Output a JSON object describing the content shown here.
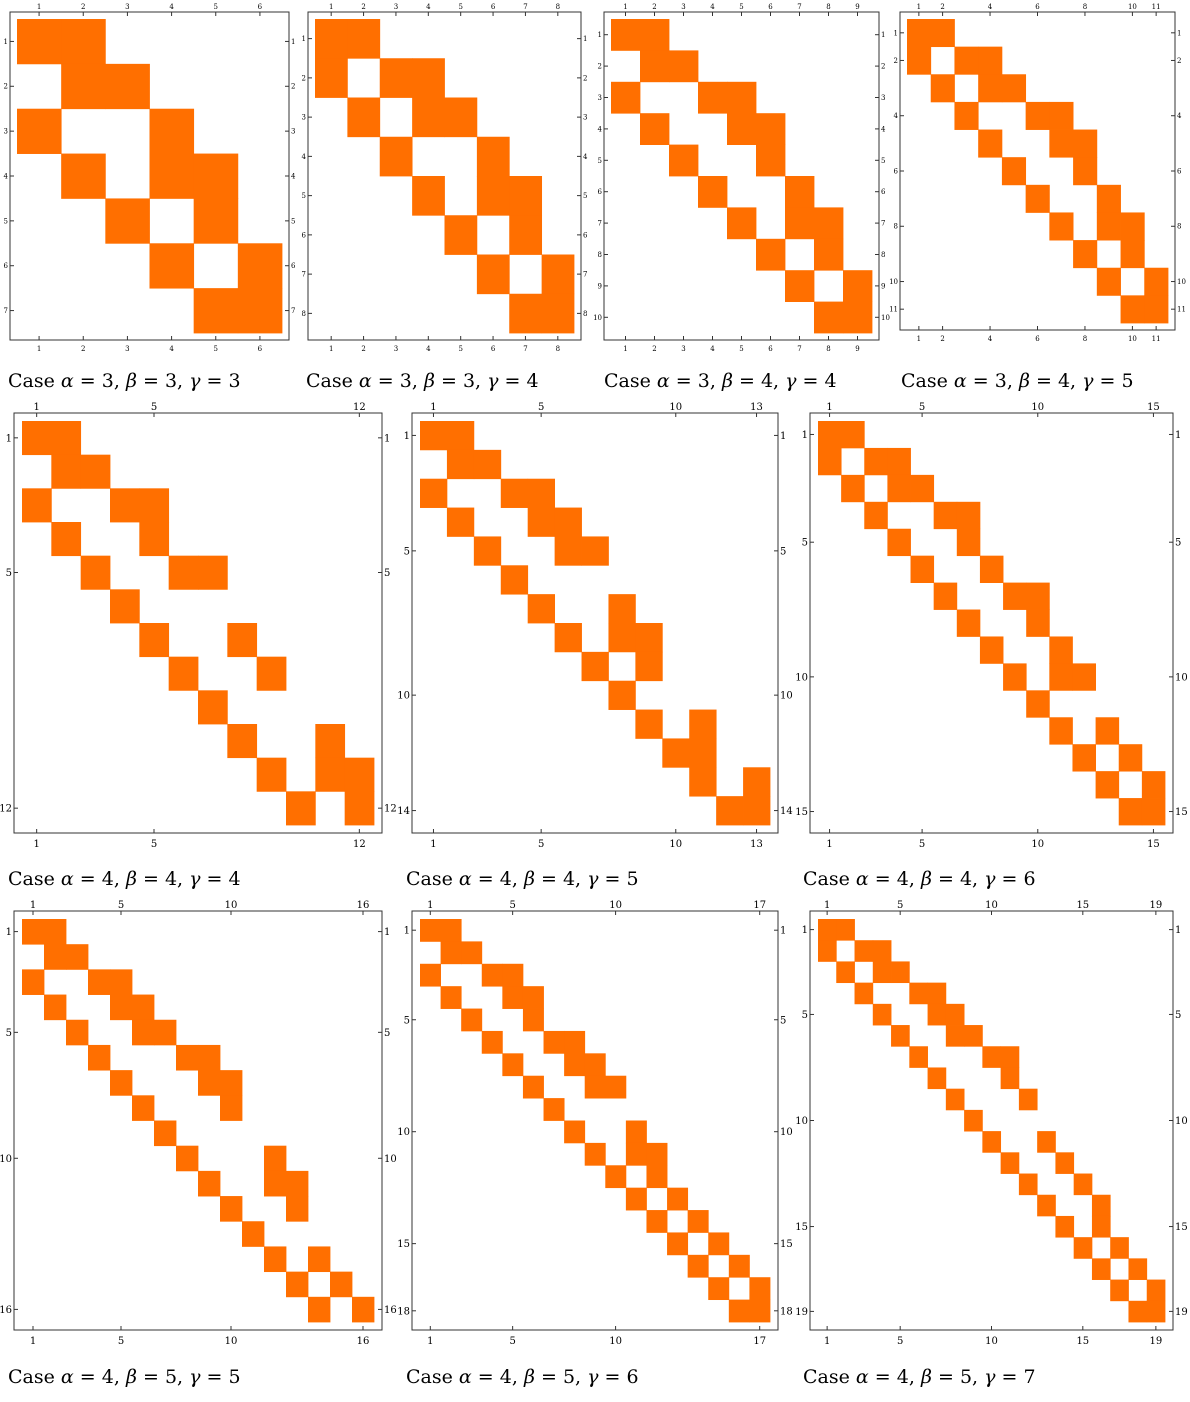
{
  "palette": {
    "cell": "#ff6f00",
    "frame": "#333333",
    "background": "#ffffff",
    "text": "#000000"
  },
  "chart_data": [
    {
      "type": "heatmap",
      "title": "Case α = 3, β = 3, γ = 3",
      "caption": {
        "prefix": "Case",
        "alpha": "3",
        "beta": "3",
        "gamma": "3"
      },
      "rows": 7,
      "cols": 6,
      "top_ticks": [
        1,
        2,
        3,
        4,
        5,
        6
      ],
      "bottom_ticks": [
        1,
        2,
        3,
        4,
        5,
        6
      ],
      "row_ticks": [
        1,
        2,
        3,
        4,
        5,
        6,
        7
      ],
      "cells": [
        [
          1,
          1
        ],
        [
          1,
          2
        ],
        [
          2,
          2
        ],
        [
          2,
          3
        ],
        [
          3,
          1
        ],
        [
          3,
          4
        ],
        [
          4,
          2
        ],
        [
          4,
          4
        ],
        [
          4,
          5
        ],
        [
          5,
          3
        ],
        [
          5,
          5
        ],
        [
          6,
          4
        ],
        [
          6,
          6
        ],
        [
          7,
          5
        ],
        [
          7,
          6
        ]
      ]
    },
    {
      "type": "heatmap",
      "title": "Case α = 3, β = 3, γ = 4",
      "caption": {
        "prefix": "Case",
        "alpha": "3",
        "beta": "3",
        "gamma": "4"
      },
      "rows": 8,
      "cols": 8,
      "top_ticks": [
        1,
        2,
        3,
        4,
        5,
        6,
        7,
        8
      ],
      "bottom_ticks": [
        1,
        2,
        3,
        4,
        5,
        6,
        7,
        8
      ],
      "row_ticks": [
        1,
        2,
        3,
        4,
        5,
        6,
        7,
        8
      ],
      "cells": [
        [
          1,
          1
        ],
        [
          1,
          2
        ],
        [
          2,
          1
        ],
        [
          2,
          3
        ],
        [
          2,
          4
        ],
        [
          3,
          2
        ],
        [
          3,
          4
        ],
        [
          3,
          5
        ],
        [
          4,
          3
        ],
        [
          4,
          6
        ],
        [
          5,
          4
        ],
        [
          5,
          6
        ],
        [
          5,
          7
        ],
        [
          6,
          5
        ],
        [
          6,
          7
        ],
        [
          7,
          6
        ],
        [
          7,
          8
        ],
        [
          8,
          7
        ],
        [
          8,
          8
        ]
      ]
    },
    {
      "type": "heatmap",
      "title": "Case α = 3, β = 4, γ = 4",
      "caption": {
        "prefix": "Case",
        "alpha": "3",
        "beta": "4",
        "gamma": "4"
      },
      "rows": 10,
      "cols": 9,
      "top_ticks": [
        1,
        2,
        3,
        4,
        5,
        6,
        7,
        8,
        9
      ],
      "bottom_ticks": [
        1,
        2,
        3,
        4,
        5,
        6,
        7,
        8,
        9
      ],
      "row_ticks": [
        1,
        2,
        3,
        4,
        5,
        6,
        7,
        8,
        9,
        10
      ],
      "cells": [
        [
          1,
          1
        ],
        [
          1,
          2
        ],
        [
          2,
          2
        ],
        [
          2,
          3
        ],
        [
          3,
          1
        ],
        [
          3,
          4
        ],
        [
          3,
          5
        ],
        [
          4,
          2
        ],
        [
          4,
          5
        ],
        [
          4,
          6
        ],
        [
          5,
          3
        ],
        [
          5,
          6
        ],
        [
          6,
          4
        ],
        [
          6,
          7
        ],
        [
          7,
          5
        ],
        [
          7,
          7
        ],
        [
          7,
          8
        ],
        [
          8,
          6
        ],
        [
          8,
          8
        ],
        [
          9,
          7
        ],
        [
          9,
          9
        ],
        [
          10,
          8
        ],
        [
          10,
          9
        ]
      ]
    },
    {
      "type": "heatmap",
      "title": "Case α = 3, β = 4, γ = 5",
      "caption": {
        "prefix": "Case",
        "alpha": "3",
        "beta": "4",
        "gamma": "5"
      },
      "rows": 11,
      "cols": 11,
      "top_ticks": [
        1,
        2,
        4,
        6,
        8,
        10,
        11
      ],
      "bottom_ticks": [
        1,
        2,
        4,
        6,
        8,
        10,
        11
      ],
      "row_ticks": [
        1,
        2,
        4,
        6,
        8,
        10,
        11
      ],
      "cells": [
        [
          1,
          1
        ],
        [
          1,
          2
        ],
        [
          2,
          1
        ],
        [
          2,
          3
        ],
        [
          2,
          4
        ],
        [
          3,
          2
        ],
        [
          3,
          4
        ],
        [
          3,
          5
        ],
        [
          4,
          3
        ],
        [
          4,
          6
        ],
        [
          4,
          7
        ],
        [
          5,
          4
        ],
        [
          5,
          7
        ],
        [
          5,
          8
        ],
        [
          6,
          5
        ],
        [
          6,
          8
        ],
        [
          7,
          6
        ],
        [
          7,
          9
        ],
        [
          8,
          7
        ],
        [
          8,
          9
        ],
        [
          8,
          10
        ],
        [
          9,
          8
        ],
        [
          9,
          10
        ],
        [
          10,
          9
        ],
        [
          10,
          11
        ],
        [
          11,
          10
        ],
        [
          11,
          11
        ]
      ]
    },
    {
      "type": "heatmap",
      "title": "Case α = 4, β = 4, γ = 4",
      "caption": {
        "prefix": "Case",
        "alpha": "4",
        "beta": "4",
        "gamma": "4"
      },
      "rows": 12,
      "cols": 12,
      "top_ticks": [
        1,
        5,
        12
      ],
      "bottom_ticks": [
        1,
        5,
        12
      ],
      "row_ticks": [
        1,
        5,
        12
      ],
      "cells": [
        [
          1,
          1
        ],
        [
          1,
          2
        ],
        [
          2,
          2
        ],
        [
          2,
          3
        ],
        [
          3,
          1
        ],
        [
          3,
          4
        ],
        [
          3,
          5
        ],
        [
          4,
          2
        ],
        [
          4,
          5
        ],
        [
          5,
          3
        ],
        [
          5,
          6
        ],
        [
          5,
          7
        ],
        [
          6,
          4
        ],
        [
          7,
          5
        ],
        [
          7,
          8
        ],
        [
          8,
          6
        ],
        [
          8,
          9
        ],
        [
          9,
          7
        ],
        [
          10,
          8
        ],
        [
          10,
          11
        ],
        [
          11,
          9
        ],
        [
          11,
          11
        ],
        [
          11,
          12
        ],
        [
          12,
          10
        ],
        [
          12,
          12
        ]
      ]
    },
    {
      "type": "heatmap",
      "title": "Case α = 4, β = 4, γ = 5",
      "caption": {
        "prefix": "Case",
        "alpha": "4",
        "beta": "4",
        "gamma": "5"
      },
      "rows": 14,
      "cols": 13,
      "top_ticks": [
        1,
        5,
        10,
        13
      ],
      "bottom_ticks": [
        1,
        5,
        10,
        13
      ],
      "row_ticks": [
        1,
        5,
        10,
        14
      ],
      "cells": [
        [
          1,
          1
        ],
        [
          1,
          2
        ],
        [
          2,
          2
        ],
        [
          2,
          3
        ],
        [
          3,
          1
        ],
        [
          3,
          4
        ],
        [
          3,
          5
        ],
        [
          4,
          2
        ],
        [
          4,
          5
        ],
        [
          4,
          6
        ],
        [
          5,
          3
        ],
        [
          5,
          6
        ],
        [
          5,
          7
        ],
        [
          6,
          4
        ],
        [
          7,
          5
        ],
        [
          7,
          8
        ],
        [
          8,
          6
        ],
        [
          8,
          8
        ],
        [
          8,
          9
        ],
        [
          9,
          7
        ],
        [
          9,
          9
        ],
        [
          10,
          8
        ],
        [
          11,
          9
        ],
        [
          11,
          11
        ],
        [
          12,
          10
        ],
        [
          12,
          11
        ],
        [
          13,
          11
        ],
        [
          13,
          13
        ],
        [
          14,
          12
        ],
        [
          14,
          13
        ]
      ]
    },
    {
      "type": "heatmap",
      "title": "Case α = 4, β = 4, γ = 6",
      "caption": {
        "prefix": "Case",
        "alpha": "4",
        "beta": "4",
        "gamma": "6"
      },
      "rows": 15,
      "cols": 15,
      "top_ticks": [
        1,
        5,
        10,
        15
      ],
      "bottom_ticks": [
        1,
        5,
        10,
        15
      ],
      "row_ticks": [
        1,
        5,
        10,
        15
      ],
      "cells": [
        [
          1,
          1
        ],
        [
          1,
          2
        ],
        [
          2,
          1
        ],
        [
          2,
          3
        ],
        [
          2,
          4
        ],
        [
          3,
          2
        ],
        [
          3,
          4
        ],
        [
          3,
          5
        ],
        [
          4,
          3
        ],
        [
          4,
          6
        ],
        [
          4,
          7
        ],
        [
          5,
          4
        ],
        [
          5,
          7
        ],
        [
          6,
          5
        ],
        [
          6,
          8
        ],
        [
          7,
          6
        ],
        [
          7,
          9
        ],
        [
          7,
          10
        ],
        [
          8,
          7
        ],
        [
          8,
          10
        ],
        [
          9,
          8
        ],
        [
          9,
          11
        ],
        [
          10,
          9
        ],
        [
          10,
          11
        ],
        [
          10,
          12
        ],
        [
          11,
          10
        ],
        [
          12,
          11
        ],
        [
          12,
          13
        ],
        [
          13,
          12
        ],
        [
          13,
          14
        ],
        [
          14,
          13
        ],
        [
          14,
          15
        ],
        [
          15,
          14
        ],
        [
          15,
          15
        ]
      ]
    },
    {
      "type": "heatmap",
      "title": "Case α = 4, β = 5, γ = 5",
      "caption": {
        "prefix": "Case",
        "alpha": "4",
        "beta": "5",
        "gamma": "5"
      },
      "rows": 16,
      "cols": 16,
      "top_ticks": [
        1,
        5,
        10,
        16
      ],
      "bottom_ticks": [
        1,
        5,
        10,
        16
      ],
      "row_ticks": [
        1,
        5,
        10,
        16
      ],
      "cells": [
        [
          1,
          1
        ],
        [
          1,
          2
        ],
        [
          2,
          2
        ],
        [
          2,
          3
        ],
        [
          3,
          1
        ],
        [
          3,
          4
        ],
        [
          3,
          5
        ],
        [
          4,
          2
        ],
        [
          4,
          5
        ],
        [
          4,
          6
        ],
        [
          5,
          3
        ],
        [
          5,
          6
        ],
        [
          5,
          7
        ],
        [
          6,
          4
        ],
        [
          6,
          8
        ],
        [
          6,
          9
        ],
        [
          7,
          5
        ],
        [
          7,
          9
        ],
        [
          7,
          10
        ],
        [
          8,
          6
        ],
        [
          8,
          10
        ],
        [
          9,
          7
        ],
        [
          10,
          8
        ],
        [
          10,
          12
        ],
        [
          11,
          9
        ],
        [
          11,
          12
        ],
        [
          11,
          13
        ],
        [
          12,
          10
        ],
        [
          12,
          13
        ],
        [
          13,
          11
        ],
        [
          14,
          12
        ],
        [
          14,
          14
        ],
        [
          15,
          13
        ],
        [
          15,
          15
        ],
        [
          16,
          14
        ],
        [
          16,
          16
        ]
      ]
    },
    {
      "type": "heatmap",
      "title": "Case α = 4, β = 5, γ = 6",
      "caption": {
        "prefix": "Case",
        "alpha": "4",
        "beta": "5",
        "gamma": "6"
      },
      "rows": 18,
      "cols": 17,
      "top_ticks": [
        1,
        5,
        10,
        17
      ],
      "bottom_ticks": [
        1,
        5,
        10,
        17
      ],
      "row_ticks": [
        1,
        5,
        10,
        15,
        18
      ],
      "cells": [
        [
          1,
          1
        ],
        [
          1,
          2
        ],
        [
          2,
          2
        ],
        [
          2,
          3
        ],
        [
          3,
          1
        ],
        [
          3,
          4
        ],
        [
          3,
          5
        ],
        [
          4,
          2
        ],
        [
          4,
          5
        ],
        [
          4,
          6
        ],
        [
          5,
          3
        ],
        [
          5,
          6
        ],
        [
          6,
          4
        ],
        [
          6,
          7
        ],
        [
          6,
          8
        ],
        [
          7,
          5
        ],
        [
          7,
          8
        ],
        [
          7,
          9
        ],
        [
          8,
          6
        ],
        [
          8,
          9
        ],
        [
          8,
          10
        ],
        [
          9,
          7
        ],
        [
          10,
          8
        ],
        [
          10,
          11
        ],
        [
          11,
          9
        ],
        [
          11,
          11
        ],
        [
          11,
          12
        ],
        [
          12,
          10
        ],
        [
          12,
          12
        ],
        [
          13,
          11
        ],
        [
          13,
          13
        ],
        [
          14,
          12
        ],
        [
          14,
          14
        ],
        [
          15,
          13
        ],
        [
          15,
          15
        ],
        [
          16,
          14
        ],
        [
          16,
          16
        ],
        [
          17,
          15
        ],
        [
          17,
          17
        ],
        [
          18,
          16
        ],
        [
          18,
          17
        ]
      ]
    },
    {
      "type": "heatmap",
      "title": "Case α = 4, β = 5, γ = 7",
      "caption": {
        "prefix": "Case",
        "alpha": "4",
        "beta": "5",
        "gamma": "7"
      },
      "rows": 19,
      "cols": 19,
      "top_ticks": [
        1,
        5,
        10,
        15,
        19
      ],
      "bottom_ticks": [
        1,
        5,
        10,
        15,
        19
      ],
      "row_ticks": [
        1,
        5,
        10,
        15,
        19
      ],
      "cells": [
        [
          1,
          1
        ],
        [
          1,
          2
        ],
        [
          2,
          1
        ],
        [
          2,
          3
        ],
        [
          2,
          4
        ],
        [
          3,
          2
        ],
        [
          3,
          4
        ],
        [
          3,
          5
        ],
        [
          4,
          3
        ],
        [
          4,
          6
        ],
        [
          4,
          7
        ],
        [
          5,
          4
        ],
        [
          5,
          7
        ],
        [
          5,
          8
        ],
        [
          6,
          5
        ],
        [
          6,
          8
        ],
        [
          6,
          9
        ],
        [
          7,
          6
        ],
        [
          7,
          10
        ],
        [
          7,
          11
        ],
        [
          8,
          7
        ],
        [
          8,
          11
        ],
        [
          9,
          8
        ],
        [
          9,
          12
        ],
        [
          10,
          9
        ],
        [
          11,
          10
        ],
        [
          11,
          13
        ],
        [
          12,
          11
        ],
        [
          12,
          14
        ],
        [
          13,
          12
        ],
        [
          13,
          15
        ],
        [
          14,
          13
        ],
        [
          14,
          16
        ],
        [
          15,
          14
        ],
        [
          15,
          16
        ],
        [
          16,
          15
        ],
        [
          16,
          17
        ],
        [
          17,
          16
        ],
        [
          17,
          18
        ],
        [
          18,
          17
        ],
        [
          18,
          19
        ],
        [
          19,
          18
        ],
        [
          19,
          19
        ]
      ]
    }
  ]
}
